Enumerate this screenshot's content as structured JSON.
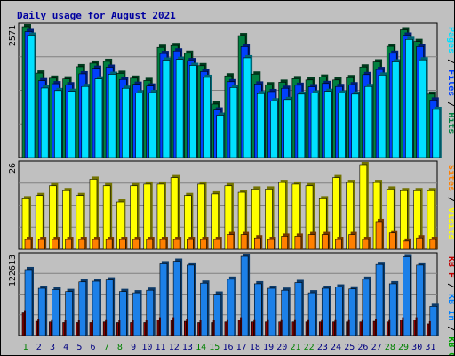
{
  "chart_data": {
    "type": "bar",
    "title": "Daily usage for August 2021",
    "categories": [
      "1",
      "2",
      "3",
      "4",
      "5",
      "6",
      "7",
      "8",
      "9",
      "10",
      "11",
      "12",
      "13",
      "14",
      "15",
      "16",
      "17",
      "18",
      "19",
      "20",
      "21",
      "22",
      "23",
      "24",
      "25",
      "26",
      "27",
      "28",
      "29",
      "30",
      "31"
    ],
    "weekend_days": [
      "1",
      "7",
      "8",
      "14",
      "15",
      "21",
      "22",
      "28",
      "29"
    ],
    "panels": [
      {
        "name": "hits-files-pages",
        "max_label": "2571",
        "ylim": [
          0,
          2571
        ],
        "right_label": [
          {
            "text": "Pages",
            "color": "#00e0ff"
          },
          {
            "text": " / ",
            "color": "#000000"
          },
          {
            "text": "Files",
            "color": "#0040ff"
          },
          {
            "text": " / ",
            "color": "#000000"
          },
          {
            "text": "Hits",
            "color": "#008040"
          }
        ],
        "series": [
          {
            "name": "Hits",
            "color": "#008040",
            "values": [
              2571,
              1660,
              1560,
              1545,
              1785,
              1855,
              1890,
              1655,
              1560,
              1515,
              2165,
              2200,
              2050,
              1805,
              1050,
              1605,
              2395,
              1640,
              1430,
              1480,
              1550,
              1525,
              1580,
              1525,
              1570,
              1780,
              1880,
              2185,
              2510,
              2280,
              1245
            ]
          },
          {
            "name": "Files",
            "color": "#0040ff",
            "values": [
              2475,
              1510,
              1450,
              1430,
              1645,
              1755,
              1775,
              1535,
              1440,
              1405,
              2045,
              2095,
              1905,
              1690,
              935,
              1490,
              2180,
              1445,
              1295,
              1360,
              1420,
              1390,
              1455,
              1395,
              1430,
              1630,
              1730,
              2050,
              2405,
              2180,
              1130
            ]
          },
          {
            "name": "Pages",
            "color": "#00e0ff",
            "values": [
              2405,
              1365,
              1315,
              1300,
              1395,
              1545,
              1635,
              1360,
              1270,
              1275,
              1915,
              1930,
              1810,
              1575,
              830,
              1375,
              1960,
              1255,
              1115,
              1140,
              1245,
              1265,
              1300,
              1265,
              1245,
              1395,
              1620,
              1880,
              2320,
              1920,
              945
            ]
          }
        ]
      },
      {
        "name": "visits-sites",
        "max_label": "26",
        "ylim": [
          0,
          26
        ],
        "right_label": [
          {
            "text": "Sites",
            "color": "#ff8000"
          },
          {
            "text": " / ",
            "color": "#000000"
          },
          {
            "text": "Visits",
            "color": "#ffff00"
          }
        ],
        "series": [
          {
            "name": "Visits",
            "color": "#ffff00",
            "values": [
              15.5,
              16.5,
              19.5,
              18,
              16.5,
              21.5,
              19.5,
              14.5,
              19.5,
              20,
              20,
              22,
              16.5,
              20,
              17,
              19.5,
              17.5,
              18.5,
              18.5,
              20.5,
              20,
              19.5,
              15.5,
              22,
              20.5,
              26,
              20.5,
              18.5,
              18,
              18,
              18
            ]
          },
          {
            "name": "Sites",
            "color": "#ff8000",
            "values": [
              3,
              3,
              3,
              3,
              3,
              3,
              3,
              3,
              3,
              3,
              3,
              3,
              3,
              3,
              3,
              4.5,
              4.5,
              3.5,
              3,
              4,
              4,
              4.5,
              4.5,
              3,
              4.5,
              3,
              8.5,
              5,
              2.5,
              3.5,
              3
            ]
          }
        ]
      },
      {
        "name": "kb-in-out-f",
        "max_label": "122613",
        "ylim": [
          0,
          122613
        ],
        "right_label": [
          {
            "text": "KB F",
            "color": "#c00000"
          },
          {
            "text": " / ",
            "color": "#000000"
          },
          {
            "text": "KB In",
            "color": "#0080ff"
          },
          {
            "text": " / ",
            "color": "#000000"
          },
          {
            "text": "KB Out",
            "color": "#00a000"
          }
        ],
        "series": [
          {
            "name": "KB In",
            "color": "#1c80e8",
            "values": [
              102000,
              73000,
              71000,
              68000,
              83000,
              84000,
              86000,
              68000,
              66000,
              70000,
              111000,
              115000,
              109000,
              81000,
              64000,
              87000,
              122613,
              80000,
              73000,
              70000,
              82000,
              66000,
              73000,
              75000,
              72000,
              87000,
              110000,
              80000,
              122000,
              109000,
              45000
            ]
          },
          {
            "name": "KB F",
            "color": "#900000",
            "values": [
              35000,
              22000,
              21000,
              20000,
              20000,
              20000,
              21000,
              20000,
              20000,
              20000,
              24000,
              24000,
              22000,
              20000,
              20000,
              21000,
              24000,
              21000,
              21000,
              21000,
              21000,
              21000,
              21000,
              21000,
              21000,
              21000,
              22000,
              21000,
              24000,
              24000,
              18000
            ]
          }
        ]
      }
    ]
  }
}
